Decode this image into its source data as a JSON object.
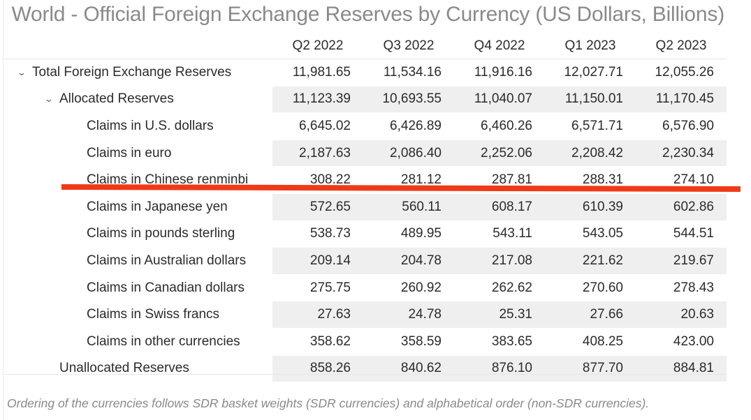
{
  "title": "World - Official Foreign Exchange Reserves by Currency (US Dollars, Billions)",
  "columns": [
    "Q2 2022",
    "Q3 2022",
    "Q4 2022",
    "Q1 2023",
    "Q2 2023"
  ],
  "rows": [
    {
      "label": "Total Foreign Exchange Reserves",
      "level": 0,
      "chevron": "⌄",
      "values": [
        "11,981.65",
        "11,534.16",
        "11,916.16",
        "12,027.71",
        "12,055.26"
      ]
    },
    {
      "label": "Allocated Reserves",
      "level": 1,
      "chevron": "⌄",
      "values": [
        "11,123.39",
        "10,693.55",
        "11,040.07",
        "11,150.01",
        "11,170.45"
      ]
    },
    {
      "label": "Claims in U.S. dollars",
      "level": 2,
      "values": [
        "6,645.02",
        "6,426.89",
        "6,460.26",
        "6,571.71",
        "6,576.90"
      ]
    },
    {
      "label": "Claims in euro",
      "level": 2,
      "values": [
        "2,187.63",
        "2,086.40",
        "2,252.06",
        "2,208.42",
        "2,230.34"
      ]
    },
    {
      "label": "Claims in Chinese renminbi",
      "level": 2,
      "values": [
        "308.22",
        "281.12",
        "287.81",
        "288.31",
        "274.10"
      ]
    },
    {
      "label": "Claims in Japanese yen",
      "level": 2,
      "values": [
        "572.65",
        "560.11",
        "608.17",
        "610.39",
        "602.86"
      ]
    },
    {
      "label": "Claims in pounds sterling",
      "level": 2,
      "values": [
        "538.73",
        "489.95",
        "543.11",
        "543.05",
        "544.51"
      ]
    },
    {
      "label": "Claims in Australian dollars",
      "level": 2,
      "values": [
        "209.14",
        "204.78",
        "217.08",
        "221.62",
        "219.67"
      ]
    },
    {
      "label": "Claims in Canadian dollars",
      "level": 2,
      "values": [
        "275.75",
        "260.92",
        "262.62",
        "270.60",
        "278.43"
      ]
    },
    {
      "label": "Claims in Swiss francs",
      "level": 2,
      "values": [
        "27.63",
        "24.78",
        "25.31",
        "27.66",
        "20.63"
      ]
    },
    {
      "label": "Claims in other currencies",
      "level": 2,
      "values": [
        "358.62",
        "358.59",
        "383.65",
        "408.25",
        "423.00"
      ]
    },
    {
      "label": "Unallocated Reserves",
      "level": 1,
      "values": [
        "858.26",
        "840.62",
        "876.10",
        "877.70",
        "884.81"
      ]
    }
  ],
  "footnote": "Ordering of the currencies follows SDR basket weights (SDR currencies) and alphabetical order (non-SDR currencies).",
  "colors": {
    "highlight_line": "#f03a17",
    "shade": "#efefef",
    "title": "#8a8a8a"
  }
}
